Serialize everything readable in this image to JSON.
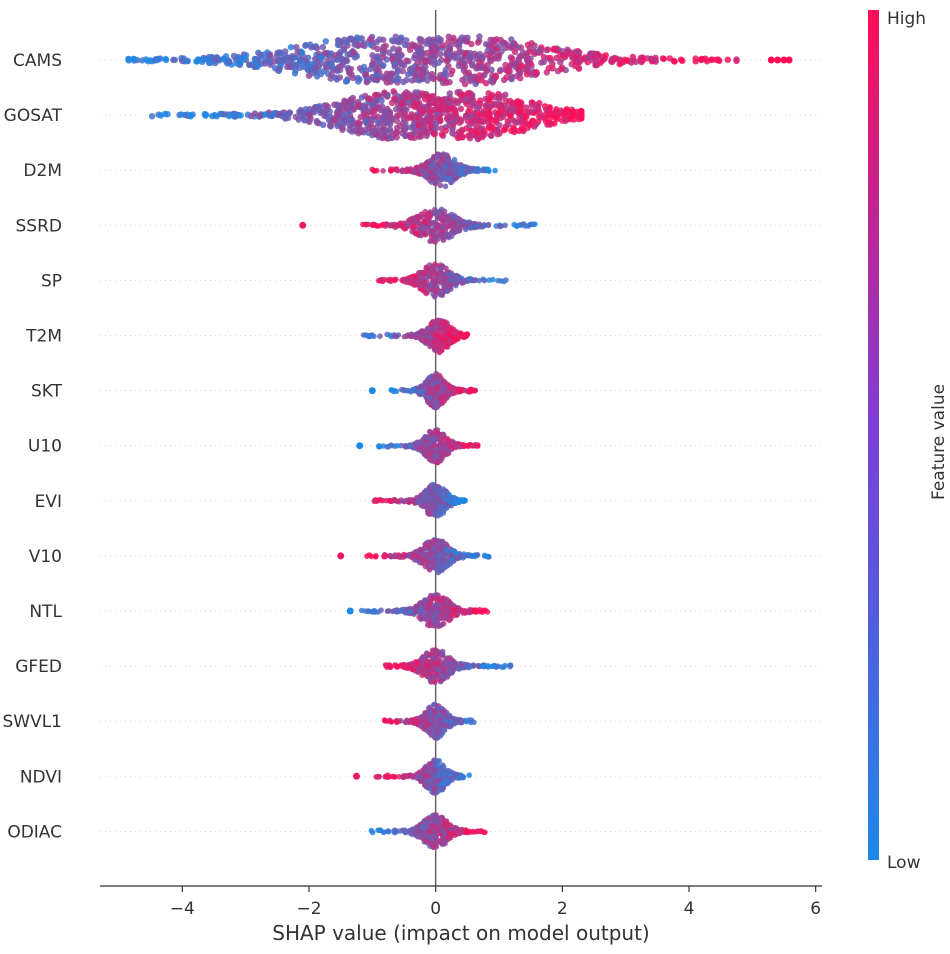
{
  "chart_data": {
    "type": "scatter",
    "subtype": "shap-beeswarm",
    "xlabel": "SHAP value (impact on model output)",
    "xlim": [
      -5.3,
      6.1
    ],
    "xticks": [
      -4,
      -2,
      0,
      2,
      4,
      6
    ],
    "xtick_labels": [
      "−4",
      "−2",
      "0",
      "2",
      "4",
      "6"
    ],
    "colorbar": {
      "title": "Feature value",
      "high_label": "High",
      "low_label": "Low",
      "high_color": "#ff0d57",
      "low_color": "#1e88e5"
    },
    "features": [
      {
        "name": "CAMS",
        "min": -4.85,
        "max": 4.75,
        "outliers": [
          5.3,
          5.4,
          5.5,
          5.58
        ],
        "low_side": "negative",
        "mode": -0.9,
        "mode2": 0.5
      },
      {
        "name": "GOSAT",
        "min": -4.5,
        "max": 2.3,
        "outliers": [],
        "low_side": "negative",
        "mode": -0.6,
        "mode2": 0.6
      },
      {
        "name": "D2M",
        "min": -1.05,
        "max": 1.0,
        "outliers": [],
        "low_side": "positive",
        "mode": 0.1
      },
      {
        "name": "SSRD",
        "min": -1.2,
        "max": 1.6,
        "outliers": [
          -2.1
        ],
        "low_side": "positive",
        "mode": 0.0
      },
      {
        "name": "SP",
        "min": -0.9,
        "max": 1.2,
        "outliers": [],
        "low_side": "positive",
        "mode": 0.0
      },
      {
        "name": "T2M",
        "min": -1.15,
        "max": 0.5,
        "outliers": [],
        "low_side": "negative",
        "mode": 0.05
      },
      {
        "name": "SKT",
        "min": -0.75,
        "max": 0.65,
        "outliers": [
          -1.0
        ],
        "low_side": "negative",
        "mode": 0.0
      },
      {
        "name": "U10",
        "min": -0.9,
        "max": 0.7,
        "outliers": [
          -1.2
        ],
        "low_side": "negative",
        "mode": 0.0
      },
      {
        "name": "EVI",
        "min": -1.0,
        "max": 0.55,
        "outliers": [],
        "low_side": "positive",
        "mode": 0.0
      },
      {
        "name": "V10",
        "min": -1.1,
        "max": 0.85,
        "outliers": [
          -1.5
        ],
        "low_side": "positive",
        "mode": 0.0
      },
      {
        "name": "NTL",
        "min": -1.2,
        "max": 0.85,
        "outliers": [
          -1.35
        ],
        "low_side": "negative",
        "mode": 0.0
      },
      {
        "name": "GFED",
        "min": -0.8,
        "max": 1.2,
        "outliers": [],
        "low_side": "positive",
        "mode": 0.0
      },
      {
        "name": "SWVL1",
        "min": -0.85,
        "max": 0.65,
        "outliers": [],
        "low_side": "positive",
        "mode": 0.0
      },
      {
        "name": "NDVI",
        "min": -0.95,
        "max": 0.55,
        "outliers": [
          -1.25
        ],
        "low_side": "positive",
        "mode": 0.0
      },
      {
        "name": "ODIAC",
        "min": -1.05,
        "max": 0.8,
        "outliers": [],
        "low_side": "negative",
        "mode": 0.0
      }
    ]
  }
}
